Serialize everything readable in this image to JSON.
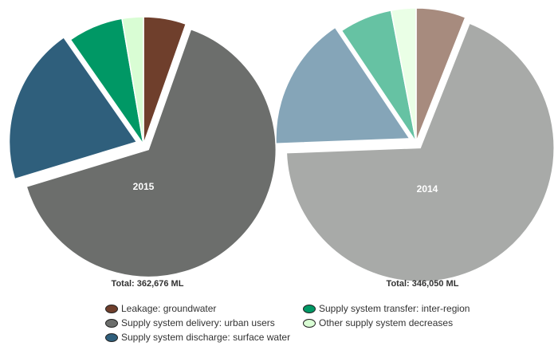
{
  "chart_data": [
    {
      "type": "pie",
      "center_label": "2015",
      "total_label": "Total: 362,676 ML",
      "unit": "%",
      "slices": [
        {
          "name": "Leakage: groundwater",
          "value": 5.4,
          "color": "#6f3f2c",
          "exploded": false
        },
        {
          "name": "Supply system delivery: urban users",
          "value": 64.9,
          "color": "#6c6e6c",
          "exploded": true
        },
        {
          "name": "Supply system discharge: surface water",
          "value": 20.0,
          "color": "#2f5f7c",
          "exploded": true
        },
        {
          "name": "Supply system transfer: inter-region",
          "value": 7.0,
          "color": "#009865",
          "exploded": false
        },
        {
          "name": "Other supply system decreases",
          "value": 2.7,
          "color": "#d9fdd4",
          "exploded": false
        }
      ]
    },
    {
      "type": "pie",
      "center_label": "2014",
      "total_label": "Total: 346,050 ML",
      "unit": "%",
      "slices": [
        {
          "name": "Leakage: groundwater",
          "value": 6.0,
          "color": "#a78b7e",
          "exploded": false
        },
        {
          "name": "Supply system delivery: urban users",
          "value": 68.4,
          "color": "#a8aaa8",
          "exploded": true
        },
        {
          "name": "Supply system discharge: surface water",
          "value": 16.2,
          "color": "#85a5b8",
          "exploded": true
        },
        {
          "name": "Supply system transfer: inter-region",
          "value": 6.4,
          "color": "#66c2a3",
          "exploded": false
        },
        {
          "name": "Other supply system decreases",
          "value": 3.0,
          "color": "#eaffe6",
          "exploded": false
        }
      ]
    }
  ],
  "legend": {
    "placement": "bottom",
    "items": [
      {
        "label": "Leakage: groundwater",
        "color": "#6f3f2c"
      },
      {
        "label": "Supply system delivery: urban users",
        "color": "#6c6e6c"
      },
      {
        "label": "Supply system discharge: surface water",
        "color": "#2f5f7c"
      },
      {
        "label": "Supply system transfer: inter-region",
        "color": "#009865"
      },
      {
        "label": "Other supply system decreases",
        "color": "#d9fdd4"
      }
    ]
  }
}
